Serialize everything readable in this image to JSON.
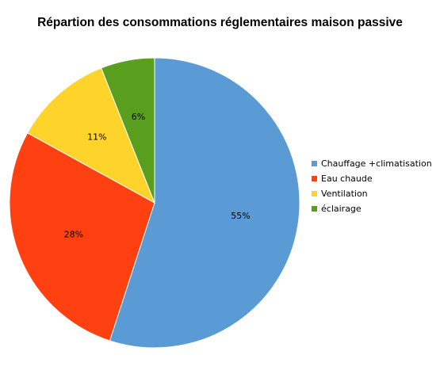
{
  "chart_data": {
    "type": "pie",
    "title": "Répartion des consommations réglementaires maison passive",
    "categories": [
      "Chauffage +climatisation",
      "Eau chaude",
      "Ventilation",
      "éclairage"
    ],
    "values": [
      55,
      28,
      11,
      6
    ],
    "labels": [
      "55%",
      "28%",
      "11%",
      "6%"
    ],
    "colors": [
      "#5B9BD5",
      "#FF4010",
      "#FFD42A",
      "#5A9E1E"
    ],
    "legend_position": "right"
  }
}
